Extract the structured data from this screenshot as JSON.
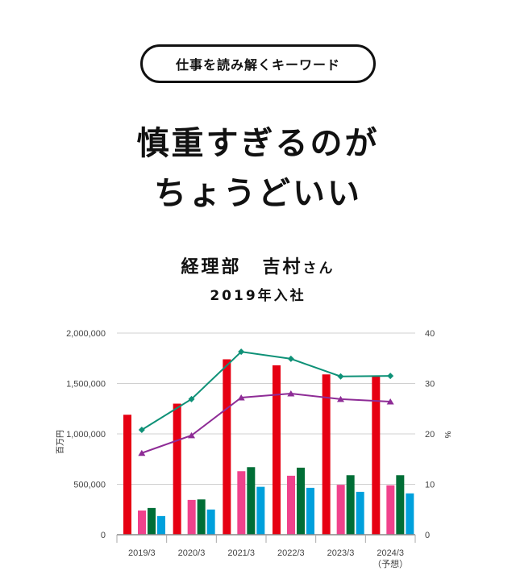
{
  "header": {
    "keyword_badge": "仕事を読み解くキーワード",
    "title_line1": "慎重すぎるのが",
    "title_line2": "ちょうどいい",
    "department": "経理部",
    "person_name": "吉村",
    "honorific": "さん",
    "joined": "2019年入社"
  },
  "colors": {
    "series_red": "#e60012",
    "series_pink": "#f0428c",
    "series_green": "#006e36",
    "series_blue": "#00a0dc",
    "line_teal": "#0e9177",
    "line_purple": "#8e2c96",
    "grid": "#d0d0d0",
    "axis_text": "#444444"
  },
  "chart_data": {
    "type": "bar",
    "title": "",
    "categories": [
      "2019/3",
      "2020/3",
      "2021/3",
      "2022/3",
      "2023/3",
      "2024/3"
    ],
    "category_sublabels": [
      "",
      "",
      "",
      "",
      "",
      "（予想）"
    ],
    "ylabel": "百万円",
    "ylabel_right": "%",
    "ylim": [
      0,
      2000000
    ],
    "ylim_right": [
      0,
      40
    ],
    "yticks": [
      "0",
      "500,000",
      "1,000,000",
      "1,500,000",
      "2,000,000"
    ],
    "yticks_right": [
      "0",
      "10",
      "20",
      "30",
      "40"
    ],
    "grid": true,
    "legend": "none",
    "series": [
      {
        "name": "series_red",
        "type": "bar",
        "axis": "left",
        "values": [
          1190000,
          1300000,
          1740000,
          1680000,
          1590000,
          1570000
        ]
      },
      {
        "name": "series_pink",
        "type": "bar",
        "axis": "left",
        "values": [
          240000,
          345000,
          630000,
          585000,
          495000,
          490000
        ]
      },
      {
        "name": "series_green",
        "type": "bar",
        "axis": "left",
        "values": [
          265000,
          350000,
          670000,
          665000,
          590000,
          590000
        ]
      },
      {
        "name": "series_blue",
        "type": "bar",
        "axis": "left",
        "values": [
          185000,
          250000,
          475000,
          465000,
          425000,
          410000
        ]
      },
      {
        "name": "line_teal",
        "type": "line",
        "axis": "right",
        "marker": "diamond",
        "values": [
          20.8,
          26.9,
          36.3,
          34.9,
          31.4,
          31.5
        ]
      },
      {
        "name": "line_purple",
        "type": "line",
        "axis": "right",
        "marker": "triangle",
        "values": [
          16.2,
          19.7,
          27.2,
          28.0,
          26.9,
          26.4
        ]
      }
    ]
  }
}
